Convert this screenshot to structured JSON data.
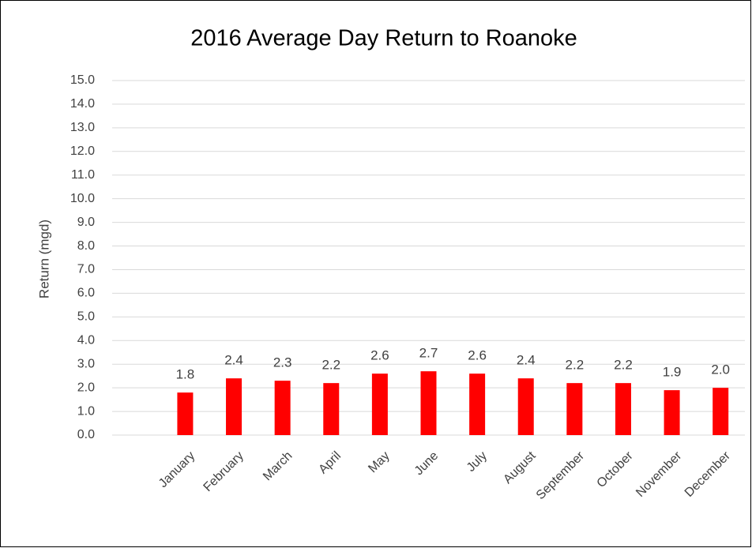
{
  "chart_data": {
    "type": "bar",
    "title": "2016 Average Day Return to Roanoke",
    "y_label": "Return (mgd)",
    "categories": [
      null,
      "January",
      "February",
      "March",
      "April",
      "May",
      "June",
      "July",
      "August",
      "September",
      "October",
      "November",
      "December"
    ],
    "values": [
      null,
      1.8,
      2.4,
      2.3,
      2.2,
      2.6,
      2.7,
      2.6,
      2.4,
      2.2,
      2.2,
      1.9,
      2.0
    ],
    "value_labels": [
      null,
      "1.8",
      "2.4",
      "2.3",
      "2.2",
      "2.6",
      "2.7",
      "2.6",
      "2.4",
      "2.2",
      "2.2",
      "1.9",
      "2.0"
    ],
    "color": "#ff0000",
    "ylim": [
      0,
      15
    ],
    "yticks": [
      {
        "value": 0,
        "label": "0.0"
      },
      {
        "value": 1,
        "label": "1.0"
      },
      {
        "value": 2,
        "label": "2.0"
      },
      {
        "value": 3,
        "label": "3.0"
      },
      {
        "value": 4,
        "label": "4.0"
      },
      {
        "value": 5,
        "label": "5.0"
      },
      {
        "value": 6,
        "label": "6.0"
      },
      {
        "value": 7,
        "label": "7.0"
      },
      {
        "value": 8,
        "label": "8.0"
      },
      {
        "value": 9,
        "label": "9.0"
      },
      {
        "value": 10,
        "label": "10.0"
      },
      {
        "value": 11,
        "label": "11.0"
      },
      {
        "value": 12,
        "label": "12.0"
      },
      {
        "value": 13,
        "label": "13.0"
      },
      {
        "value": 14,
        "label": "14.0"
      },
      {
        "value": 15,
        "label": "15.0"
      }
    ],
    "grid": true
  }
}
